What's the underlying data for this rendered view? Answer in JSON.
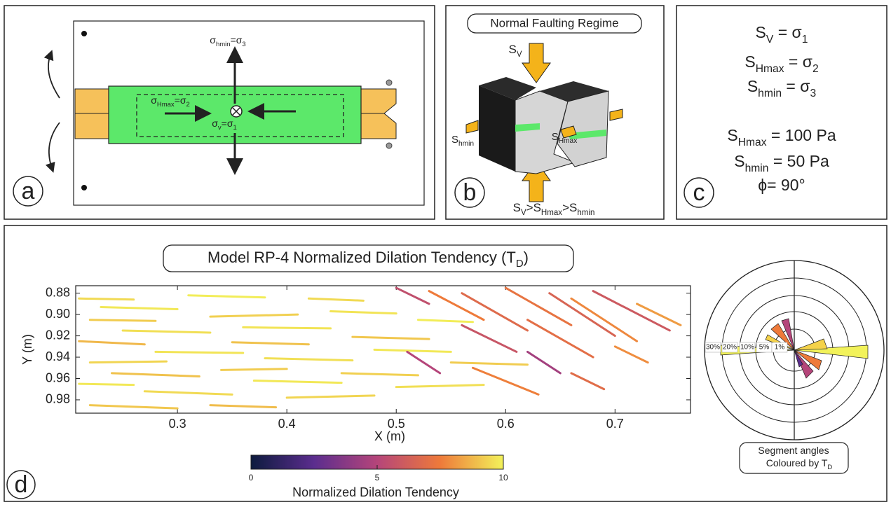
{
  "panel_a": {
    "letter": "a",
    "labels": [
      {
        "parts": [
          "σ",
          "hmin",
          "=σ",
          "3"
        ]
      },
      {
        "parts": [
          "σ",
          "Hmax",
          "=σ",
          "2"
        ]
      },
      {
        "parts": [
          "σ",
          "v",
          "=σ",
          "1"
        ]
      }
    ]
  },
  "panel_b": {
    "letter": "b",
    "title": "Normal Faulting Regime",
    "labels": [
      {
        "parts": [
          "S",
          "V"
        ]
      },
      {
        "parts": [
          "S",
          "hmin"
        ]
      },
      {
        "parts": [
          "S",
          "Hmax"
        ]
      },
      {
        "parts": [
          "S",
          "V",
          ">S",
          "Hmax",
          ">S",
          "hmin"
        ]
      }
    ]
  },
  "panel_c": {
    "letter": "c",
    "labels": [
      {
        "parts": [
          "S",
          "V",
          " = σ",
          "1"
        ]
      },
      {
        "parts": [
          "S",
          "Hmax",
          " = σ",
          "2"
        ]
      },
      {
        "parts": [
          "S",
          "hmin",
          " = σ",
          "3"
        ]
      },
      {
        "parts": [
          "S",
          "Hmax",
          " = 100 Pa"
        ]
      },
      {
        "parts": [
          "S",
          "hmin",
          " = 50 Pa"
        ]
      },
      {
        "parts": [
          "ϕ= 90°"
        ]
      }
    ]
  },
  "chart_data": {
    "type": "segments",
    "letter": "d",
    "title": {
      "parts": [
        "Model RP-4 Normalized Dilation Tendency (T",
        "D",
        ")"
      ]
    },
    "xlabel": "X (m)",
    "ylabel": "Y (m)",
    "xlim": [
      0.207,
      0.769
    ],
    "ylim": [
      0.873,
      0.9925
    ],
    "y_inverted": true,
    "xticks": [
      0.3,
      0.4,
      0.5,
      0.6,
      0.7
    ],
    "yticks": [
      0.88,
      {
        "value": 0.9,
        "label": "0.90"
      },
      0.92,
      0.94,
      0.96,
      0.98
    ],
    "colorbar": {
      "label": "Normalized Dilation Tendency",
      "lim": [
        0,
        10
      ],
      "ticks": [
        0,
        5,
        10
      ],
      "colors": [
        "#0d1b3e",
        "#5b2d8e",
        "#b5457a",
        "#ee7a3a",
        "#f2f25a"
      ]
    },
    "rose": {
      "ring_labels": [
        "30%",
        "20%",
        "10%",
        "5%",
        "1%"
      ],
      "caption": [
        {
          "parts": [
            "Segment angles"
          ]
        },
        {
          "parts": [
            "Coloured by T",
            "D"
          ]
        }
      ]
    },
    "segments": [
      [
        0.21,
        0.885,
        0.26,
        0.886,
        9.5
      ],
      [
        0.23,
        0.893,
        0.3,
        0.895,
        9.8
      ],
      [
        0.22,
        0.905,
        0.28,
        0.906,
        9.2
      ],
      [
        0.25,
        0.915,
        0.33,
        0.917,
        9.6
      ],
      [
        0.21,
        0.925,
        0.27,
        0.928,
        8.8
      ],
      [
        0.28,
        0.935,
        0.36,
        0.936,
        9.7
      ],
      [
        0.22,
        0.945,
        0.29,
        0.944,
        9.4
      ],
      [
        0.24,
        0.955,
        0.32,
        0.958,
        9.0
      ],
      [
        0.21,
        0.965,
        0.26,
        0.966,
        9.8
      ],
      [
        0.27,
        0.972,
        0.35,
        0.975,
        9.5
      ],
      [
        0.22,
        0.985,
        0.3,
        0.988,
        9.1
      ],
      [
        0.31,
        0.882,
        0.38,
        0.884,
        9.9
      ],
      [
        0.33,
        0.902,
        0.41,
        0.9,
        9.3
      ],
      [
        0.36,
        0.912,
        0.44,
        0.913,
        9.7
      ],
      [
        0.35,
        0.926,
        0.42,
        0.928,
        9.0
      ],
      [
        0.38,
        0.941,
        0.46,
        0.943,
        9.6
      ],
      [
        0.34,
        0.952,
        0.4,
        0.951,
        9.2
      ],
      [
        0.37,
        0.962,
        0.45,
        0.964,
        9.8
      ],
      [
        0.4,
        0.978,
        0.48,
        0.976,
        9.4
      ],
      [
        0.33,
        0.985,
        0.39,
        0.987,
        8.9
      ],
      [
        0.42,
        0.885,
        0.47,
        0.887,
        9.5
      ],
      [
        0.44,
        0.897,
        0.5,
        0.899,
        9.7
      ],
      [
        0.46,
        0.921,
        0.53,
        0.923,
        9.1
      ],
      [
        0.48,
        0.933,
        0.55,
        0.935,
        9.8
      ],
      [
        0.45,
        0.955,
        0.52,
        0.957,
        9.3
      ],
      [
        0.5,
        0.968,
        0.58,
        0.966,
        9.6
      ],
      [
        0.52,
        0.905,
        0.57,
        0.907,
        9.9
      ],
      [
        0.55,
        0.945,
        0.62,
        0.947,
        9.2
      ],
      [
        0.5,
        0.875,
        0.53,
        0.89,
        5.5
      ],
      [
        0.53,
        0.878,
        0.58,
        0.905,
        7.5
      ],
      [
        0.56,
        0.88,
        0.62,
        0.915,
        6.8
      ],
      [
        0.6,
        0.875,
        0.66,
        0.91,
        7.2
      ],
      [
        0.64,
        0.88,
        0.7,
        0.92,
        6.5
      ],
      [
        0.66,
        0.885,
        0.72,
        0.925,
        7.8
      ],
      [
        0.68,
        0.878,
        0.75,
        0.915,
        6.0
      ],
      [
        0.62,
        0.905,
        0.68,
        0.94,
        7.0
      ],
      [
        0.56,
        0.91,
        0.61,
        0.935,
        5.8
      ],
      [
        0.51,
        0.935,
        0.54,
        0.955,
        5.0
      ],
      [
        0.57,
        0.95,
        0.63,
        0.975,
        7.6
      ],
      [
        0.66,
        0.955,
        0.69,
        0.97,
        6.9
      ],
      [
        0.7,
        0.93,
        0.73,
        0.945,
        7.9
      ],
      [
        0.72,
        0.89,
        0.76,
        0.91,
        8.2
      ],
      [
        0.62,
        0.935,
        0.65,
        0.955,
        4.5
      ]
    ]
  }
}
